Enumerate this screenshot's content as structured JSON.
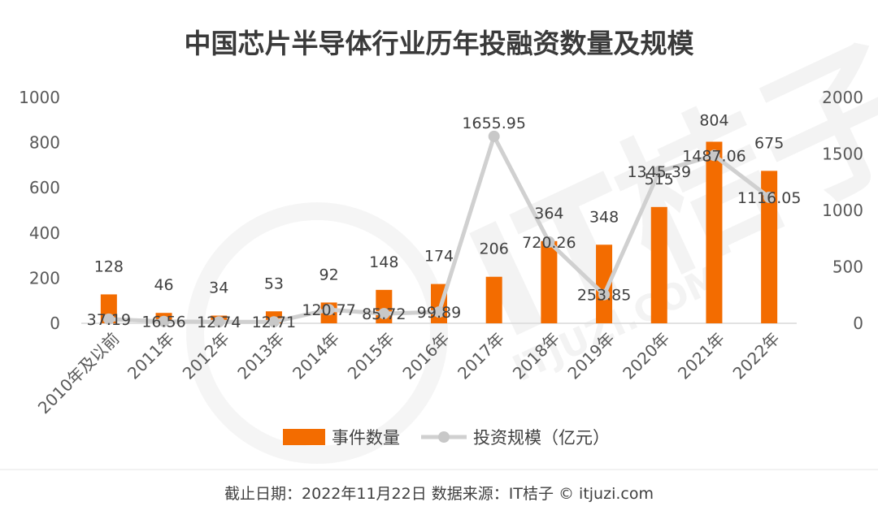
{
  "chart_data": {
    "type": "bar+line",
    "title": "中国芯片半导体行业历年投融资数量及规模",
    "categories": [
      "2010年及以前",
      "2011年",
      "2012年",
      "2013年",
      "2014年",
      "2015年",
      "2016年",
      "2017年",
      "2018年",
      "2019年",
      "2020年",
      "2021年",
      "2022年"
    ],
    "series": [
      {
        "name": "事件数量",
        "type": "bar",
        "axis": "left",
        "color": "#f36c00",
        "values": [
          128,
          46,
          34,
          53,
          92,
          148,
          174,
          206,
          364,
          348,
          515,
          804,
          675
        ]
      },
      {
        "name": "投资规模（亿元）",
        "type": "line",
        "axis": "right",
        "color": "#d0d0d0",
        "values": [
          37.19,
          16.56,
          12.74,
          12.71,
          120.77,
          85.72,
          99.89,
          1655.95,
          720.26,
          253.85,
          1345.39,
          1487.06,
          1116.05
        ]
      }
    ],
    "yaxis_left": {
      "ylim": [
        0,
        1000
      ],
      "ticks": [
        "0",
        "200",
        "400",
        "600",
        "800",
        "1000"
      ]
    },
    "yaxis_right": {
      "ylim": [
        0,
        2000
      ],
      "ticks": [
        "0",
        "500",
        "1000",
        "1500",
        "2000"
      ]
    },
    "legend_position": "bottom",
    "grid": false
  },
  "watermark": {
    "text": "IT桔子",
    "subtext": "ITJUZI.COM"
  },
  "footer": "截止日期：2022年11月22日   数据来源：IT桔子 © itjuzi.com"
}
